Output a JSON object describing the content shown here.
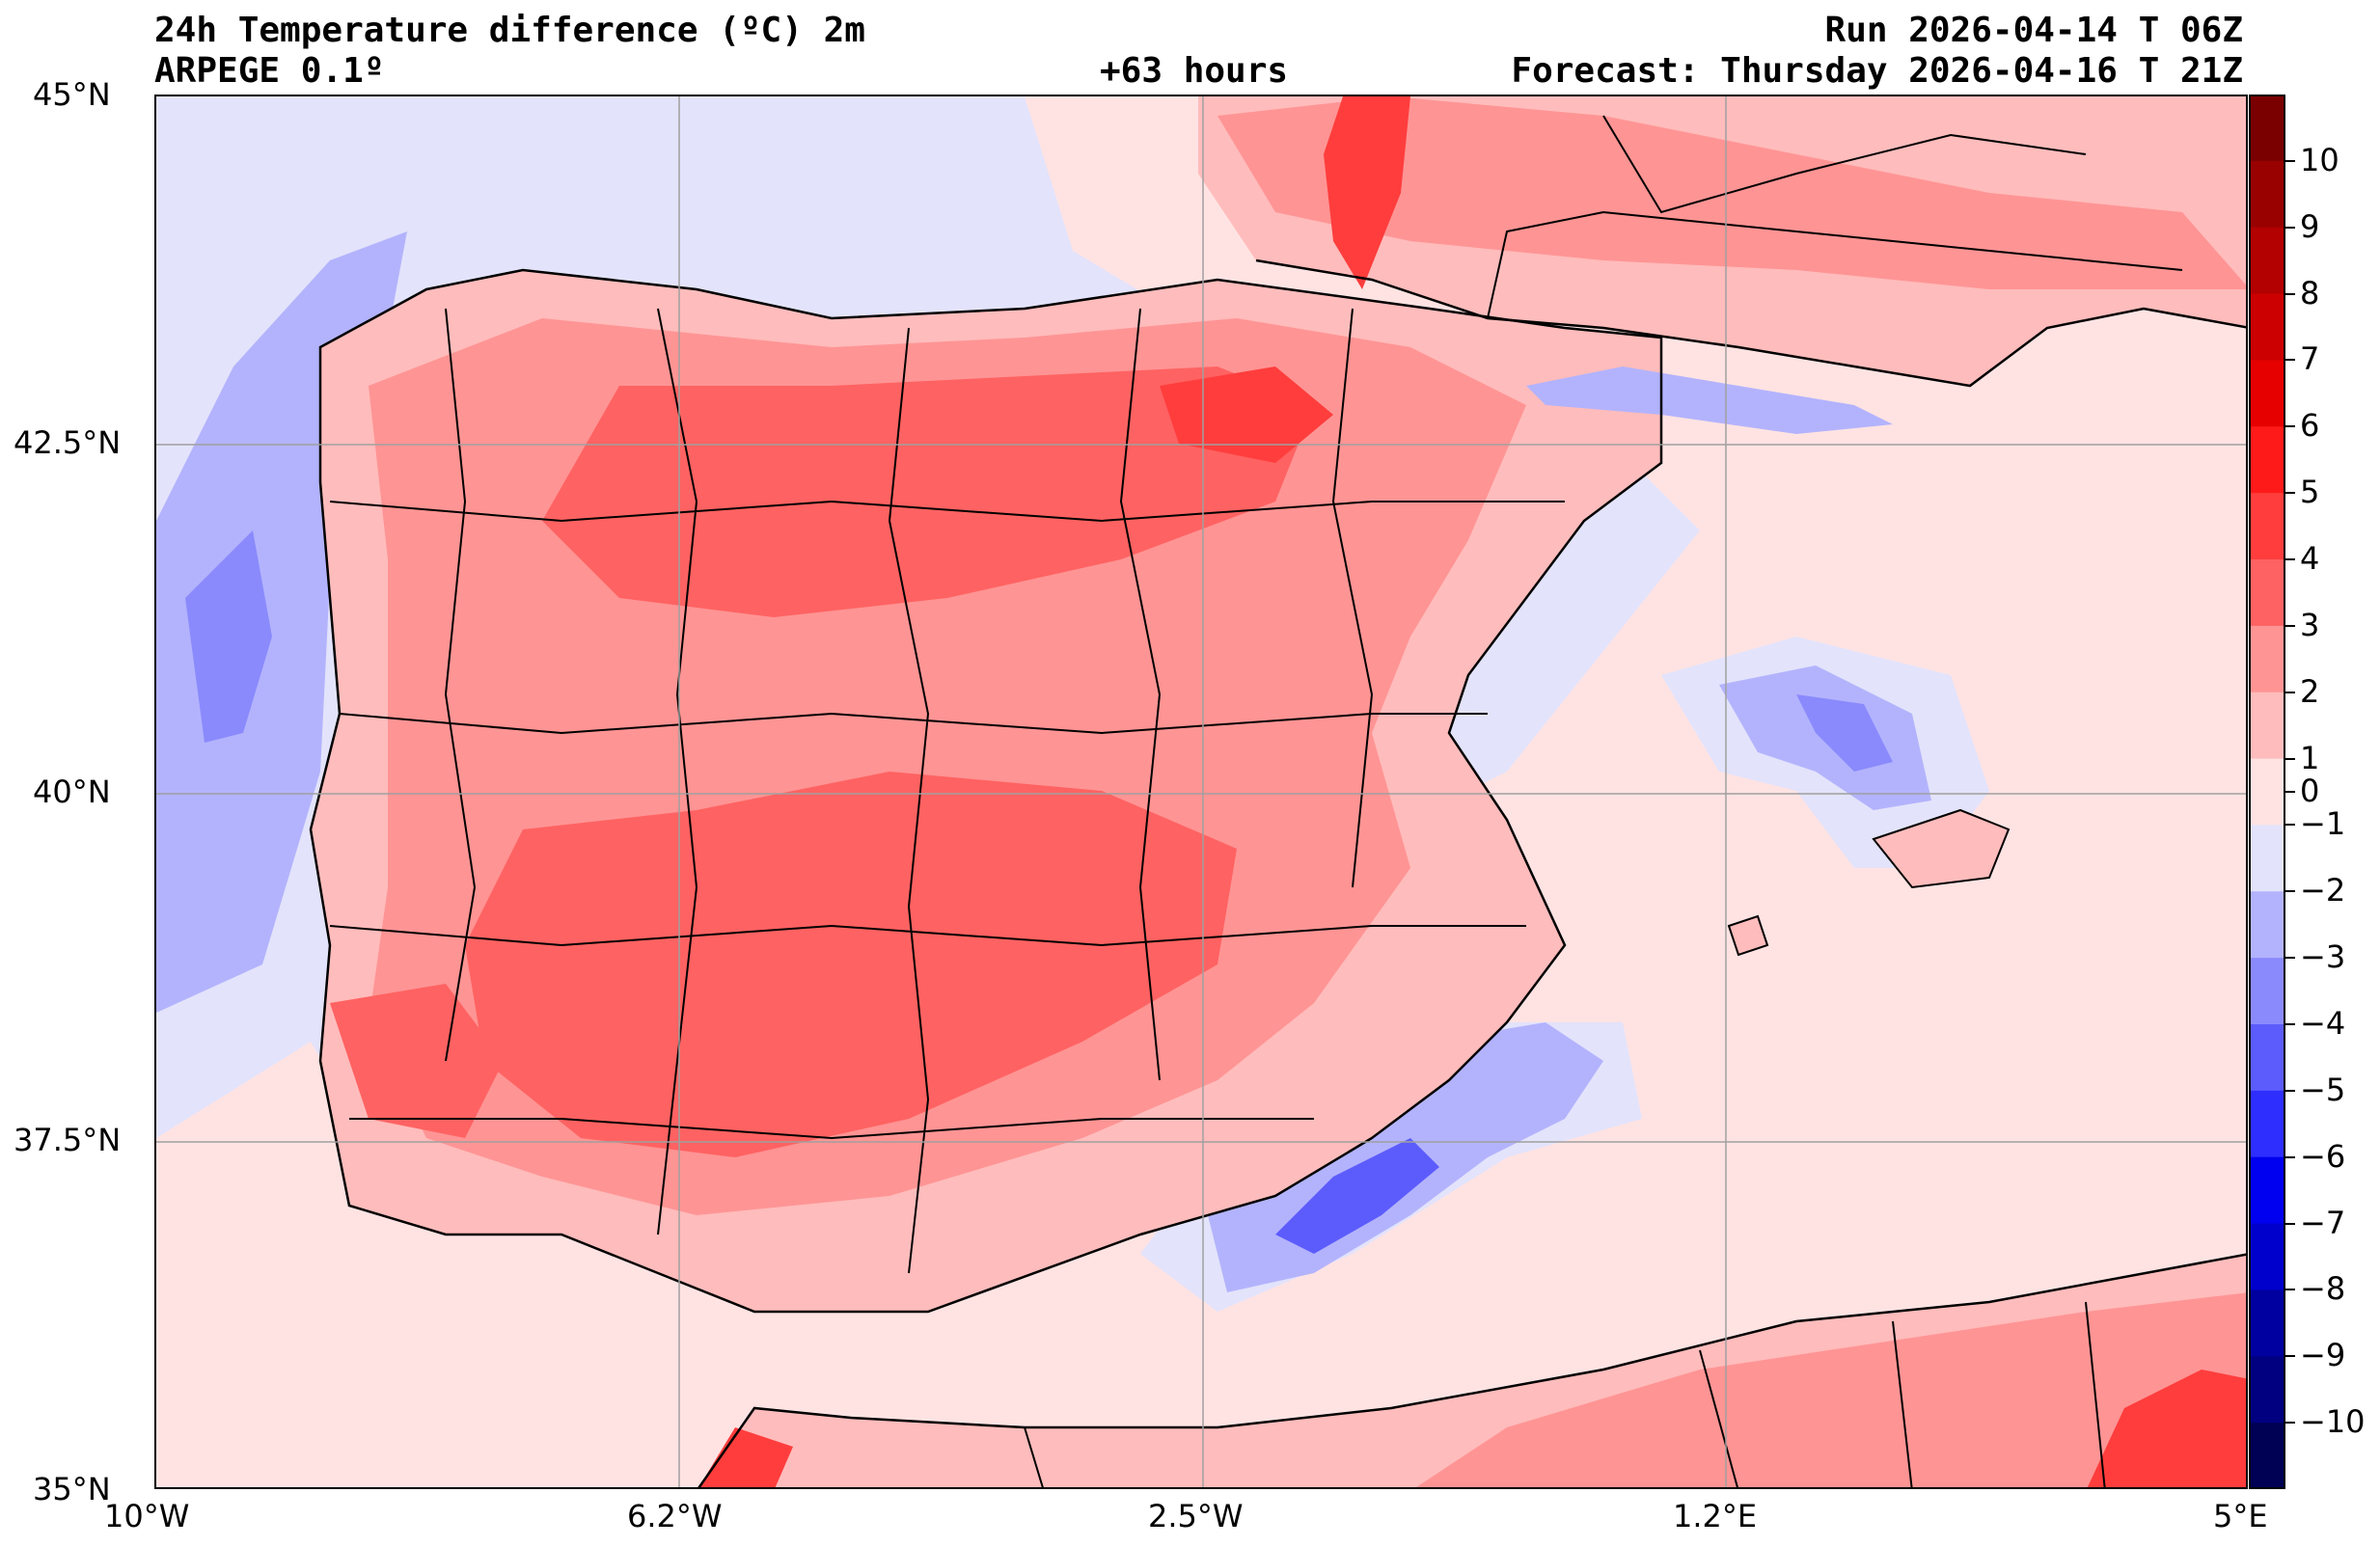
{
  "header": {
    "title": "24h Temperature difference (ºC) 2m",
    "model": "ARPEGE 0.1º",
    "lead_time": "+63 hours",
    "run": "Run 2026-04-14 T 06Z",
    "forecast": "Forecast: Thursday 2026-04-16 T 21Z"
  },
  "axes": {
    "lat_labels": [
      "45°N",
      "42.5°N",
      "40°N",
      "37.5°N",
      "35°N"
    ],
    "lon_labels": [
      "10°W",
      "6.2°W",
      "2.5°W",
      "1.2°E",
      "5°E"
    ],
    "gridlines": true
  },
  "colorbar": {
    "labels": [
      "10",
      "9",
      "8",
      "7",
      "6",
      "5",
      "4",
      "3",
      "2",
      "1",
      "0",
      "−1",
      "−2",
      "−3",
      "−4",
      "−5",
      "−6",
      "−7",
      "−8",
      "−9",
      "−10"
    ],
    "colors": [
      "#7a0000",
      "#990000",
      "#b30000",
      "#cc0000",
      "#e60000",
      "#ff1a1a",
      "#ff3d3d",
      "#ff6262",
      "#ff9494",
      "#ffbcbc",
      "#ffe3e3",
      "#e3e3fb",
      "#b3b3fd",
      "#8a8afd",
      "#5c5cfd",
      "#2e2eff",
      "#0000f0",
      "#0000cc",
      "#0000a0",
      "#000080",
      "#000055"
    ]
  },
  "map": {
    "sea_color": "#e3e3fb",
    "sea_warm_color": "#ffe3e3",
    "land_color": "#ffbcbc",
    "warm_color": "#ff9494",
    "hot_color": "#ff6262",
    "very_hot_color": "#ff3d3d",
    "cool_color": "#b3b3fd",
    "cold_color": "#8a8afd",
    "colder_color": "#5c5cfd"
  }
}
